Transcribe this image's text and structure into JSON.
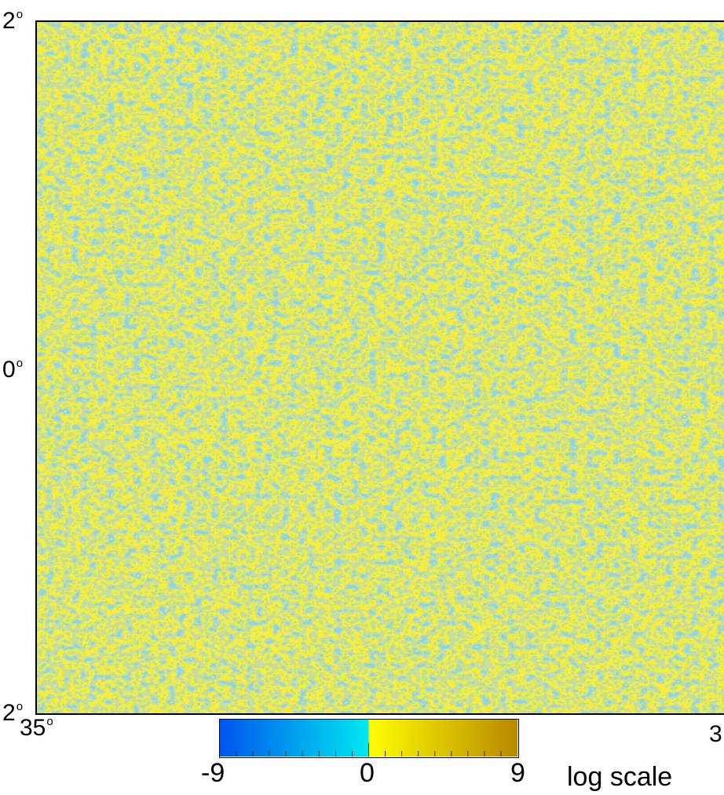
{
  "map": {
    "lat_top": "2",
    "lat_middle": "0",
    "lat_bottom": "2",
    "lon_left": "35",
    "lon_right_partial": "3",
    "degree_symbol": "o"
  },
  "colorbar": {
    "min_label": "-9",
    "mid_label": "0",
    "max_label": "9",
    "scale_label": "log scale",
    "colors": {
      "neg_dark": "#0055ee",
      "neg_light": "#00e8f0",
      "pos_light": "#ffff00",
      "pos_dark": "#b88800"
    }
  }
}
